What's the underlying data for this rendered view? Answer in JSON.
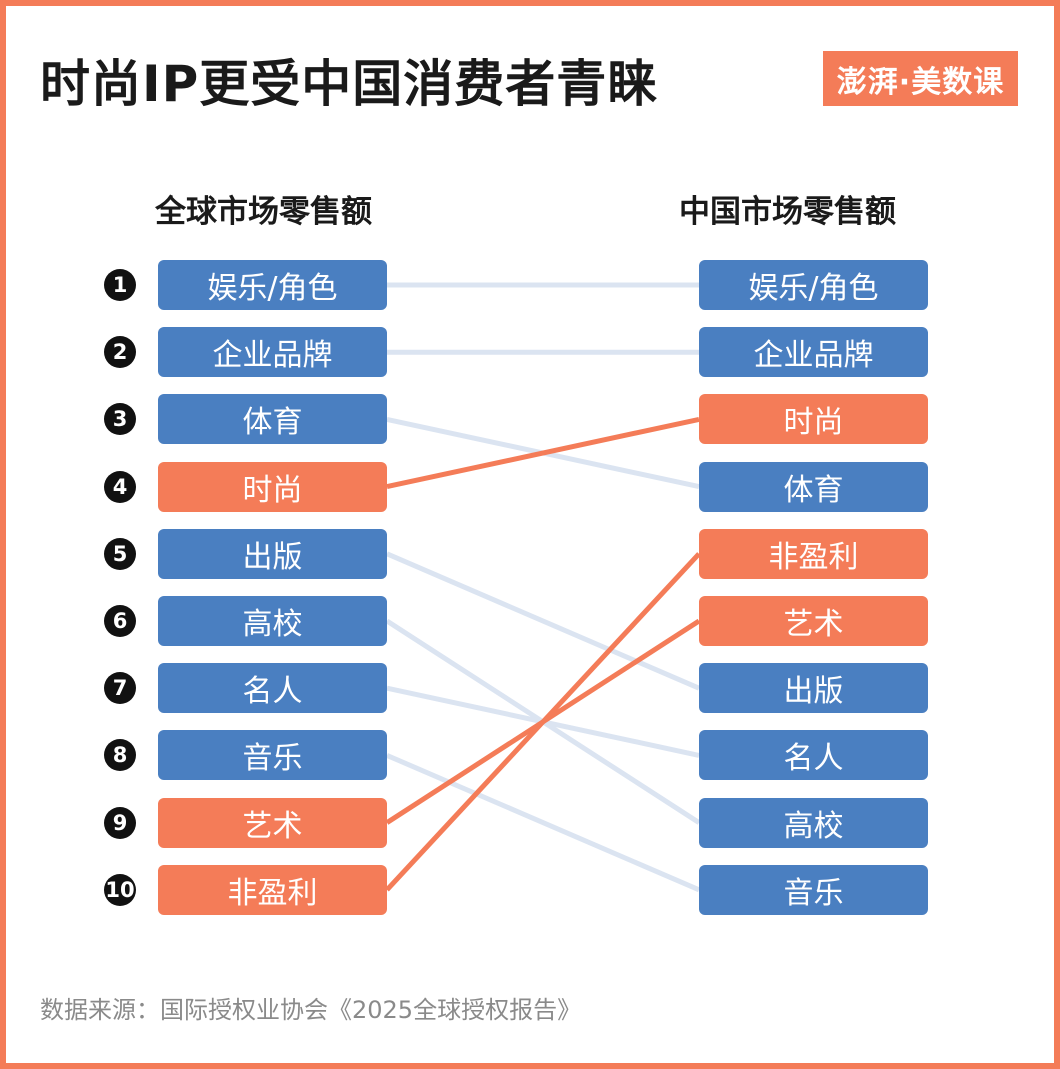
{
  "title": "时尚IP更受中国消费者青睐",
  "logo": "澎湃·美数课",
  "left_header": "全球市场零售额",
  "right_header": "中国市场零售额",
  "colors": {
    "normal": "#4a7fc1",
    "highlight": "#f47c58",
    "link": "#dbe4f1",
    "frame": "#f47c58"
  },
  "global_ranking": [
    {
      "rank": "1",
      "label": "娱乐/角色",
      "highlight": false
    },
    {
      "rank": "2",
      "label": "企业品牌",
      "highlight": false
    },
    {
      "rank": "3",
      "label": "体育",
      "highlight": false
    },
    {
      "rank": "4",
      "label": "时尚",
      "highlight": true
    },
    {
      "rank": "5",
      "label": "出版",
      "highlight": false
    },
    {
      "rank": "6",
      "label": "高校",
      "highlight": false
    },
    {
      "rank": "7",
      "label": "名人",
      "highlight": false
    },
    {
      "rank": "8",
      "label": "音乐",
      "highlight": false
    },
    {
      "rank": "9",
      "label": "艺术",
      "highlight": true
    },
    {
      "rank": "10",
      "label": "非盈利",
      "highlight": true
    }
  ],
  "china_ranking": [
    {
      "label": "娱乐/角色",
      "highlight": false
    },
    {
      "label": "企业品牌",
      "highlight": false
    },
    {
      "label": "时尚",
      "highlight": true
    },
    {
      "label": "体育",
      "highlight": false
    },
    {
      "label": "非盈利",
      "highlight": true
    },
    {
      "label": "艺术",
      "highlight": true
    },
    {
      "label": "出版",
      "highlight": false
    },
    {
      "label": "名人",
      "highlight": false
    },
    {
      "label": "高校",
      "highlight": false
    },
    {
      "label": "音乐",
      "highlight": false
    }
  ],
  "source": "数据来源：国际授权业协会《2025全球授权报告》"
}
